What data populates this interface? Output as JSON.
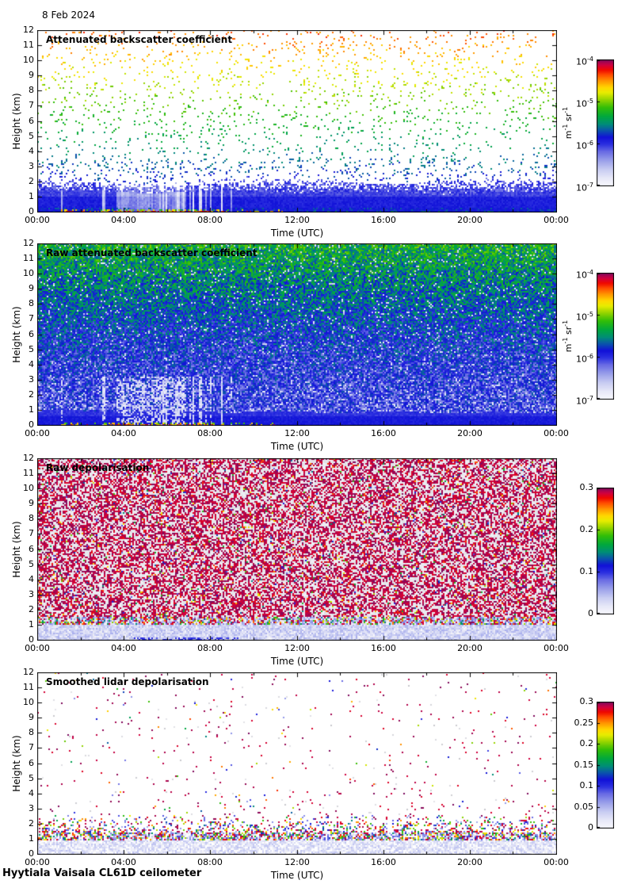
{
  "page": {
    "date": "8 Feb 2024",
    "footer": "Hyytiala Vaisala CL61D ceilometer"
  },
  "colormap": {
    "stops": [
      [
        0.0,
        "#f8f8fd"
      ],
      [
        0.06,
        "#e8e9f8"
      ],
      [
        0.13,
        "#c8ccf2"
      ],
      [
        0.2,
        "#9aa0ea"
      ],
      [
        0.27,
        "#6a6ce4"
      ],
      [
        0.33,
        "#2b2fe0"
      ],
      [
        0.385,
        "#1111d8"
      ],
      [
        0.44,
        "#0a55aa"
      ],
      [
        0.49,
        "#008d78"
      ],
      [
        0.55,
        "#00a83e"
      ],
      [
        0.62,
        "#30bd08"
      ],
      [
        0.68,
        "#8ed200"
      ],
      [
        0.74,
        "#e8ec00"
      ],
      [
        0.78,
        "#ffd800"
      ],
      [
        0.83,
        "#ff9800"
      ],
      [
        0.88,
        "#ff4e00"
      ],
      [
        0.92,
        "#f00800"
      ],
      [
        0.96,
        "#cf0040"
      ],
      [
        1.0,
        "#7c0a5e"
      ]
    ]
  },
  "chart_data": [
    {
      "id": "attenuated-backscatter",
      "type": "heatmap",
      "title": "Attenuated backscatter coefficient",
      "xlabel": "Time (UTC)",
      "ylabel": "Height (km)",
      "x_ticks": [
        "00:00",
        "04:00",
        "08:00",
        "12:00",
        "16:00",
        "20:00",
        "00:00"
      ],
      "y_ticks": [
        "12",
        "11",
        "10",
        "9",
        "8",
        "7",
        "6",
        "5",
        "4",
        "3",
        "2",
        "1",
        "0"
      ],
      "x_range_hours": [
        0,
        24
      ],
      "y_range_km": [
        0,
        12
      ],
      "grid": false,
      "colorbar": {
        "scale": "log",
        "min": "1e-7",
        "max": "1e-4",
        "tick_tokens": [
          [
            "10",
            "-4"
          ],
          [
            "10",
            "-5"
          ],
          [
            "10",
            "-6"
          ],
          [
            "10",
            "-7"
          ]
        ],
        "unit_tokens": [
          [
            "m",
            "-1"
          ],
          [
            "sr",
            "-1"
          ]
        ]
      },
      "style": {
        "kind": "abs",
        "seed": 11,
        "ground": true,
        "dense_layer_top_km": 1.4,
        "mottle_top_km": 2.15,
        "scatter_density": 0.06,
        "ground_time_frac": [
          0.045,
          0.47
        ],
        "streak_time_frac": [
          0.165,
          0.4
        ],
        "wash_time_frac": [
          0.15,
          0.285
        ]
      }
    },
    {
      "id": "raw-attenuated-backscatter",
      "type": "heatmap",
      "title": "Raw attenuated backscatter coefficient",
      "xlabel": "Time (UTC)",
      "ylabel": "Height (km)",
      "x_ticks": [
        "00:00",
        "04:00",
        "08:00",
        "12:00",
        "16:00",
        "20:00",
        "00:00"
      ],
      "y_ticks": [
        "12",
        "11",
        "10",
        "9",
        "8",
        "7",
        "6",
        "5",
        "4",
        "3",
        "2",
        "1",
        "0"
      ],
      "x_range_hours": [
        0,
        24
      ],
      "y_range_km": [
        0,
        12
      ],
      "grid": false,
      "colorbar": {
        "scale": "log",
        "min": "1e-7",
        "max": "1e-4",
        "tick_tokens": [
          [
            "10",
            "-4"
          ],
          [
            "10",
            "-5"
          ],
          [
            "10",
            "-6"
          ],
          [
            "10",
            "-7"
          ]
        ],
        "unit_tokens": [
          [
            "m",
            "-1"
          ],
          [
            "sr",
            "-1"
          ]
        ]
      },
      "style": {
        "kind": "raw_abs",
        "seed": 22,
        "ground": true,
        "band_top_km": 1.0,
        "streak_time_frac": [
          0.165,
          0.4
        ],
        "wash_time_frac": [
          0.15,
          0.285
        ]
      }
    },
    {
      "id": "raw-depolarisation",
      "type": "heatmap",
      "title": "Raw depolarisation",
      "xlabel": "Time (UTC)",
      "ylabel": "Height (km)",
      "x_ticks": [
        "00:00",
        "04:00",
        "08:00",
        "12:00",
        "16:00",
        "20:00",
        "00:00"
      ],
      "y_ticks": [
        "12",
        "11",
        "10",
        "9",
        "8",
        "7",
        "6",
        "5",
        "4",
        "3",
        "2",
        "1",
        "0"
      ],
      "x_range_hours": [
        0,
        24
      ],
      "y_range_km": [
        0,
        12
      ],
      "grid": false,
      "colorbar": {
        "scale": "linear",
        "min": "0",
        "max": "0.3",
        "tick_tokens": [
          [
            "0.3",
            ""
          ],
          [
            "0.2",
            ""
          ],
          [
            "0.1",
            ""
          ],
          [
            "0",
            ""
          ]
        ],
        "unit_tokens": []
      },
      "style": {
        "kind": "raw_depol",
        "seed": 33,
        "ground": false,
        "blue_band_km": 1.0,
        "mix_band_km": 1.6,
        "smudge_time_frac": [
          0.18,
          0.39
        ]
      }
    },
    {
      "id": "smoothed-lidar-depolarisation",
      "type": "heatmap",
      "title": "Smoothed lidar depolarisation",
      "xlabel": "Time (UTC)",
      "ylabel": "Height (km)",
      "x_ticks": [
        "00:00",
        "04:00",
        "08:00",
        "12:00",
        "16:00",
        "20:00",
        "00:00"
      ],
      "y_ticks": [
        "12",
        "11",
        "10",
        "9",
        "8",
        "7",
        "6",
        "5",
        "4",
        "3",
        "2",
        "1",
        "0"
      ],
      "x_range_hours": [
        0,
        24
      ],
      "y_range_km": [
        0,
        12
      ],
      "grid": false,
      "colorbar": {
        "scale": "linear",
        "min": "0",
        "max": "0.3",
        "tick_tokens": [
          [
            "0.3",
            ""
          ],
          [
            "0.25",
            ""
          ],
          [
            "0.2",
            ""
          ],
          [
            "0.15",
            ""
          ],
          [
            "0.1",
            ""
          ],
          [
            "0.05",
            ""
          ],
          [
            "0",
            ""
          ]
        ],
        "unit_tokens": []
      },
      "style": {
        "kind": "smooth_depol",
        "seed": 44,
        "ground": false,
        "blue_band_km": 0.95,
        "mix_band_km": 1.5,
        "sparse_above_km": 2.6
      }
    }
  ]
}
